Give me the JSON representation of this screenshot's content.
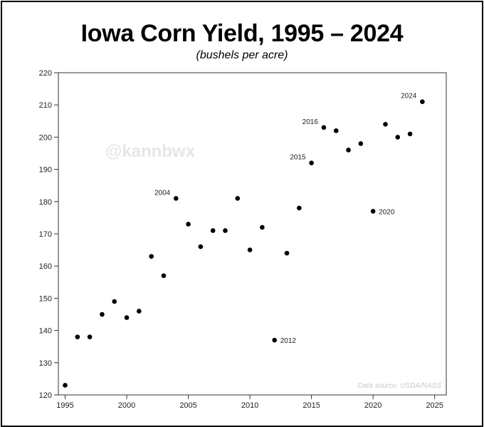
{
  "title": "Iowa Corn Yield, 1995 – 2024",
  "subtitle": "(bushels per acre)",
  "watermark": "@kannbwx",
  "source_note": "Data source: USDA/NASS",
  "chart_data": {
    "type": "scatter",
    "title": "Iowa Corn Yield, 1995 – 2024",
    "subtitle": "(bushels per acre)",
    "xlabel": "",
    "ylabel": "",
    "xlim": [
      1995,
      2025
    ],
    "ylim": [
      120,
      220
    ],
    "x_ticks": [
      1995,
      2000,
      2005,
      2010,
      2015,
      2020,
      2025
    ],
    "y_ticks": [
      120,
      130,
      140,
      150,
      160,
      170,
      180,
      190,
      200,
      210,
      220
    ],
    "grid": false,
    "marker_color": "#000000",
    "x": [
      1995,
      1996,
      1997,
      1998,
      1999,
      2000,
      2001,
      2002,
      2003,
      2004,
      2005,
      2006,
      2007,
      2008,
      2009,
      2010,
      2011,
      2012,
      2013,
      2014,
      2015,
      2016,
      2017,
      2018,
      2019,
      2020,
      2021,
      2022,
      2023,
      2024
    ],
    "y": [
      123,
      138,
      138,
      145,
      149,
      144,
      146,
      163,
      157,
      181,
      173,
      166,
      171,
      171,
      181,
      165,
      172,
      137,
      164,
      178,
      192,
      203,
      202,
      196,
      198,
      177,
      204,
      200,
      201,
      211
    ],
    "annotations": [
      {
        "x": 2004,
        "label": "2004",
        "position": "left"
      },
      {
        "x": 2012,
        "label": "2012",
        "position": "right"
      },
      {
        "x": 2015,
        "label": "2015",
        "position": "left"
      },
      {
        "x": 2016,
        "label": "2016",
        "position": "left"
      },
      {
        "x": 2020,
        "label": "2020",
        "position": "right"
      },
      {
        "x": 2024,
        "label": "2024",
        "position": "left"
      }
    ]
  }
}
